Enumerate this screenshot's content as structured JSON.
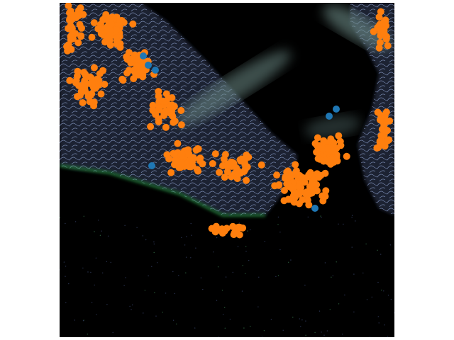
{
  "figure": {
    "kind": "fluorescence microscopy tissue section with overlaid detected-cell markers",
    "background_color": "#000000",
    "tissue_colors": {
      "membrane_stain": "#8aa2d8",
      "dark_tissue": "#1c2230",
      "nuclear_green": "#2fbf4a",
      "haze": "#6f8f8a"
    },
    "marker_series": [
      {
        "color": "#ff7f0e",
        "role": "majority markers"
      },
      {
        "color": "#1f77b4",
        "role": "minority markers"
      }
    ]
  }
}
